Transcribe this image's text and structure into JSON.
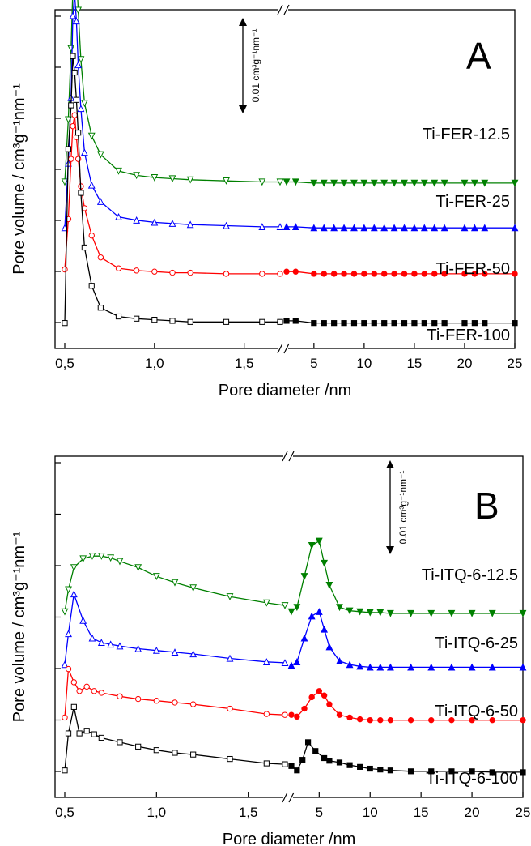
{
  "chart_data": [
    {
      "panel": "A",
      "type": "line",
      "xlabel": "Pore diameter /nm",
      "ylabel": "Pore volume / cm³g⁻¹nm⁻¹",
      "x_ticks_left": [
        "0,5",
        "1,0",
        "1,5"
      ],
      "x_ticks_right": [
        "5",
        "10",
        "15",
        "20",
        "25"
      ],
      "scale_bar": "0.01 cm³g⁻¹nm⁻¹",
      "series": [
        {
          "name": "Ti-FER-12.5",
          "color": "#008000",
          "marker": "triangle-down",
          "left_x": [
            0.5,
            0.52,
            0.535,
            0.545,
            0.555,
            0.565,
            0.575,
            0.59,
            0.61,
            0.65,
            0.7,
            0.8,
            0.9,
            1.0,
            1.1,
            1.2,
            1.4,
            1.6,
            1.7
          ],
          "left_y": [
            0.0003,
            0.006,
            0.0125,
            0.018,
            0.0215,
            0.0195,
            0.016,
            0.0115,
            0.0075,
            0.0045,
            0.0028,
            0.0013,
            0.0009,
            0.0007,
            0.0006,
            0.0005,
            0.0004,
            0.0003,
            0.0003
          ],
          "right_x": [
            3.5,
            4,
            5,
            6,
            7,
            8,
            9,
            10,
            11,
            12,
            13,
            14,
            15,
            16,
            17,
            18,
            20,
            21,
            22,
            25
          ],
          "right_y": [
            0.0003,
            0.0003,
            0.0002,
            0.0002,
            0.0002,
            0.0002,
            0.0002,
            0.0002,
            0.0002,
            0.0002,
            0.0002,
            0.0002,
            0.0002,
            0.0002,
            0.0002,
            0.0002,
            0.0002,
            0.0002,
            0.0002,
            0.0002
          ]
        },
        {
          "name": "Ti-FER-25",
          "color": "#0000ff",
          "marker": "triangle-up",
          "left_x": [
            0.5,
            0.52,
            0.535,
            0.545,
            0.555,
            0.565,
            0.575,
            0.59,
            0.61,
            0.65,
            0.7,
            0.8,
            0.9,
            1.0,
            1.1,
            1.2,
            1.4,
            1.6,
            1.7
          ],
          "left_y": [
            0.0001,
            0.006,
            0.012,
            0.0195,
            0.0215,
            0.019,
            0.015,
            0.011,
            0.007,
            0.004,
            0.0025,
            0.0011,
            0.0008,
            0.0006,
            0.0005,
            0.0004,
            0.0003,
            0.0002,
            0.0002
          ],
          "right_x": [
            3.5,
            4,
            5,
            6,
            7,
            8,
            9,
            10,
            11,
            12,
            13,
            14,
            15,
            16,
            17,
            18,
            20,
            21,
            22,
            25
          ],
          "right_y": [
            0.0002,
            0.0002,
            0.0001,
            0.0001,
            0.0001,
            0.0001,
            0.0001,
            0.0001,
            0.0001,
            0.0001,
            0.0001,
            0.0001,
            0.0001,
            0.0001,
            0.0001,
            0.0001,
            0.0001,
            0.0001,
            0.0001,
            0.0001
          ]
        },
        {
          "name": "Ti-FER-50",
          "color": "#ff0000",
          "marker": "circle",
          "left_x": [
            0.5,
            0.52,
            0.535,
            0.545,
            0.555,
            0.565,
            0.575,
            0.59,
            0.61,
            0.65,
            0.7,
            0.8,
            0.9,
            1.0,
            1.1,
            1.2,
            1.4,
            1.6,
            1.7
          ],
          "left_y": [
            0.0004,
            0.005,
            0.0105,
            0.0135,
            0.0145,
            0.0125,
            0.0105,
            0.008,
            0.006,
            0.0035,
            0.0015,
            0.0005,
            0.0003,
            0.0002,
            0.0001,
            0.0001,
            0.0,
            0.0,
            0.0
          ],
          "right_x": [
            3.5,
            4,
            5,
            6,
            7,
            8,
            9,
            10,
            11,
            12,
            13,
            14,
            15,
            16,
            17,
            18,
            20,
            21,
            22,
            25
          ],
          "right_y": [
            0.0002,
            0.0002,
            0.0,
            0.0,
            0.0,
            0.0,
            0.0,
            0.0,
            0.0,
            0.0,
            0.0,
            0.0,
            0.0,
            0.0,
            0.0,
            0.0,
            0.0,
            0.0,
            0.0,
            0.0
          ]
        },
        {
          "name": "Ti-FER-100",
          "color": "#000000",
          "marker": "square",
          "left_x": [
            0.5,
            0.52,
            0.535,
            0.545,
            0.555,
            0.565,
            0.575,
            0.59,
            0.61,
            0.65,
            0.7,
            0.8,
            0.9,
            1.0,
            1.1,
            1.2,
            1.4,
            1.6,
            1.7
          ],
          "left_y": [
            0.0001,
            0.016,
            0.02,
            0.0245,
            0.023,
            0.0205,
            0.0175,
            0.012,
            0.007,
            0.0035,
            0.0015,
            0.0007,
            0.0005,
            0.0004,
            0.0003,
            0.0002,
            0.0002,
            0.0002,
            0.0002
          ],
          "right_x": [
            3.5,
            4,
            5,
            6,
            7,
            8,
            9,
            10,
            11,
            12,
            13,
            14,
            15,
            16,
            17,
            18,
            20,
            21,
            22,
            25
          ],
          "right_y": [
            0.0003,
            0.0003,
            0.0001,
            0.0001,
            0.0001,
            0.0001,
            0.0001,
            0.0001,
            0.0001,
            0.0001,
            0.0001,
            0.0001,
            0.0001,
            0.0001,
            0.0001,
            0.0001,
            0.0001,
            0.0001,
            0.0001,
            0.0001
          ]
        }
      ]
    },
    {
      "panel": "B",
      "type": "line",
      "xlabel": "Pore diameter /nm",
      "ylabel": "Pore volume / cm³g⁻¹nm⁻¹",
      "x_ticks_left": [
        "0,5",
        "1,0",
        "1,5"
      ],
      "x_ticks_right": [
        "5",
        "10",
        "15",
        "20",
        "25"
      ],
      "scale_bar": "0.01 cm³g⁻¹nm⁻¹",
      "series": [
        {
          "name": "Ti-ITQ-6-12.5",
          "color": "#008000",
          "marker": "triangle-down",
          "left_x": [
            0.5,
            0.52,
            0.55,
            0.6,
            0.65,
            0.7,
            0.75,
            0.8,
            0.9,
            1.0,
            1.1,
            1.2,
            1.4,
            1.6,
            1.7
          ],
          "left_y": [
            0.0005,
            0.003,
            0.0055,
            0.0065,
            0.0068,
            0.0068,
            0.0066,
            0.0062,
            0.0055,
            0.0045,
            0.0038,
            0.0032,
            0.0022,
            0.0015,
            0.0012
          ],
          "right_x": [
            3.5,
            3.8,
            4.2,
            4.6,
            5.0,
            5.5,
            6,
            7,
            8,
            9,
            10,
            11,
            12,
            14,
            16,
            18,
            20,
            22,
            25
          ],
          "right_y": [
            0.0005,
            0.001,
            0.0045,
            0.008,
            0.0085,
            0.006,
            0.0035,
            0.001,
            0.0006,
            0.0005,
            0.0004,
            0.0004,
            0.0003,
            0.0003,
            0.0003,
            0.0003,
            0.0003,
            0.0003,
            0.0003
          ]
        },
        {
          "name": "Ti-ITQ-6-25",
          "color": "#0000ff",
          "marker": "triangle-up",
          "left_x": [
            0.5,
            0.52,
            0.55,
            0.6,
            0.65,
            0.7,
            0.75,
            0.8,
            0.9,
            1.0,
            1.1,
            1.2,
            1.4,
            1.6,
            1.7
          ],
          "left_y": [
            0.0005,
            0.004,
            0.0085,
            0.0055,
            0.0035,
            0.003,
            0.0028,
            0.0026,
            0.0023,
            0.0021,
            0.0019,
            0.0017,
            0.0012,
            0.0008,
            0.0007
          ],
          "right_x": [
            3.5,
            3.8,
            4.2,
            4.6,
            5.0,
            5.5,
            6,
            7,
            8,
            9,
            10,
            11,
            12,
            14,
            16,
            18,
            20,
            22,
            25
          ],
          "right_y": [
            0.0004,
            0.0008,
            0.0035,
            0.006,
            0.0065,
            0.0045,
            0.0025,
            0.0009,
            0.0005,
            0.0003,
            0.0002,
            0.0002,
            0.0002,
            0.0002,
            0.0002,
            0.0002,
            0.0002,
            0.0002,
            0.0002
          ]
        },
        {
          "name": "Ti-ITQ-6-50",
          "color": "#ff0000",
          "marker": "circle",
          "left_x": [
            0.5,
            0.52,
            0.55,
            0.58,
            0.62,
            0.66,
            0.7,
            0.8,
            0.9,
            1.0,
            1.1,
            1.2,
            1.4,
            1.6,
            1.7
          ],
          "left_y": [
            0.0005,
            0.006,
            0.0045,
            0.0035,
            0.004,
            0.0035,
            0.0033,
            0.0029,
            0.0026,
            0.0024,
            0.0022,
            0.002,
            0.0015,
            0.0009,
            0.0008
          ],
          "right_x": [
            3.5,
            3.8,
            4.2,
            4.6,
            5.0,
            5.5,
            6,
            7,
            8,
            9,
            10,
            11,
            12,
            14,
            16,
            18,
            20,
            22,
            25
          ],
          "right_y": [
            0.0008,
            0.0006,
            0.0015,
            0.0028,
            0.0035,
            0.003,
            0.002,
            0.0008,
            0.0005,
            0.0003,
            0.0002,
            0.0002,
            0.0002,
            0.0002,
            0.0002,
            0.0002,
            0.0002,
            0.0002,
            0.0002
          ]
        },
        {
          "name": "Ti-ITQ-6-100",
          "color": "#000000",
          "marker": "square",
          "left_x": [
            0.5,
            0.52,
            0.55,
            0.58,
            0.62,
            0.66,
            0.7,
            0.8,
            0.9,
            1.0,
            1.1,
            1.2,
            1.4,
            1.6,
            1.7
          ],
          "left_y": [
            0.0003,
            0.0045,
            0.0075,
            0.0045,
            0.0048,
            0.0044,
            0.004,
            0.0035,
            0.003,
            0.0026,
            0.0023,
            0.0021,
            0.0016,
            0.0011,
            0.001
          ],
          "right_x": [
            3.5,
            3.8,
            4.1,
            4.4,
            4.8,
            5.5,
            6,
            7,
            8,
            9,
            10,
            11,
            12,
            14,
            16,
            18,
            20,
            22,
            25
          ],
          "right_y": [
            0.0008,
            0.0003,
            0.0015,
            0.0035,
            0.0025,
            0.0017,
            0.0014,
            0.0012,
            0.0009,
            0.0007,
            0.0005,
            0.0004,
            0.0003,
            0.0002,
            0.0002,
            0.0002,
            0.0002,
            0.0001,
            0.0001
          ]
        }
      ]
    }
  ]
}
